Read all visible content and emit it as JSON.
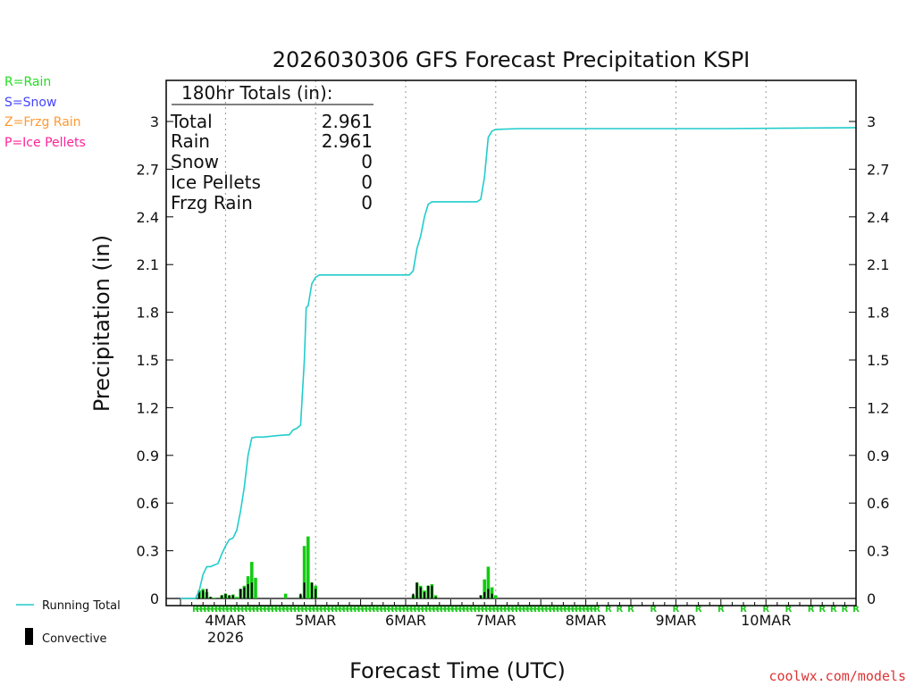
{
  "chart_data": {
    "type": "bar",
    "title": "2026030306 GFS Forecast Precipitation KSPI",
    "xlabel": "Forecast Time (UTC)",
    "ylabel": "Precipitation (in)",
    "ylim": [
      0,
      3.3
    ],
    "yticks": [
      "0",
      "0.3",
      "0.6",
      "0.9",
      "1.2",
      "1.5",
      "1.8",
      "2.1",
      "2.4",
      "2.7",
      "3"
    ],
    "x_unit": "forecast hour",
    "xlim": [
      0,
      180
    ],
    "x_ticks": [
      {
        "hour": 12,
        "label": "4MAR",
        "sublabel": "2026"
      },
      {
        "hour": 36,
        "label": "5MAR"
      },
      {
        "hour": 60,
        "label": "6MAR"
      },
      {
        "hour": 84,
        "label": "7MAR"
      },
      {
        "hour": 108,
        "label": "8MAR"
      },
      {
        "hour": 132,
        "label": "9MAR"
      },
      {
        "hour": 156,
        "label": "10MAR"
      }
    ],
    "type_legend": [
      {
        "text": "R=Rain",
        "color": "#22dd22"
      },
      {
        "text": "S=Snow",
        "color": "#4444ff"
      },
      {
        "text": "Z=Frzg Rain",
        "color": "#ff9933"
      },
      {
        "text": "P=Ice Pellets",
        "color": "#ff2299"
      }
    ],
    "series_legend": [
      {
        "name": "Running Total",
        "color": "#22cccc"
      },
      {
        "name": "Convective",
        "color": "#000000"
      }
    ],
    "totals": {
      "header": "180hr Totals (in):",
      "rows": [
        {
          "label": "Total",
          "value": "2.961"
        },
        {
          "label": "Rain",
          "value": "2.961"
        },
        {
          "label": "Snow",
          "value": "0"
        },
        {
          "label": "Ice Pellets",
          "value": "0"
        },
        {
          "label": "Frzg Rain",
          "value": "0"
        }
      ]
    },
    "precip_type_marker": "R",
    "series": [
      {
        "name": "Running Total",
        "color": "#22cccc",
        "type": "line",
        "points": [
          [
            0,
            0
          ],
          [
            4,
            0
          ],
          [
            5,
            0.05
          ],
          [
            6,
            0.15
          ],
          [
            7,
            0.2
          ],
          [
            8,
            0.2
          ],
          [
            9,
            0.21
          ],
          [
            10,
            0.22
          ],
          [
            11,
            0.28
          ],
          [
            12,
            0.33
          ],
          [
            13,
            0.37
          ],
          [
            14,
            0.38
          ],
          [
            15,
            0.43
          ],
          [
            16,
            0.55
          ],
          [
            17,
            0.7
          ],
          [
            18,
            0.9
          ],
          [
            19,
            1.01
          ],
          [
            20,
            1.015
          ],
          [
            22,
            1.015
          ],
          [
            24,
            1.02
          ],
          [
            26,
            1.025
          ],
          [
            29,
            1.03
          ],
          [
            30,
            1.06
          ],
          [
            31,
            1.07
          ],
          [
            32,
            1.09
          ],
          [
            33,
            1.5
          ],
          [
            33.5,
            1.83
          ],
          [
            34,
            1.84
          ],
          [
            35,
            1.98
          ],
          [
            36,
            2.02
          ],
          [
            37,
            2.035
          ],
          [
            48,
            2.035
          ],
          [
            60,
            2.035
          ],
          [
            61,
            2.035
          ],
          [
            62,
            2.06
          ],
          [
            63,
            2.2
          ],
          [
            64,
            2.28
          ],
          [
            65,
            2.4
          ],
          [
            66,
            2.48
          ],
          [
            67,
            2.495
          ],
          [
            72,
            2.495
          ],
          [
            79,
            2.495
          ],
          [
            80,
            2.51
          ],
          [
            81,
            2.65
          ],
          [
            82,
            2.9
          ],
          [
            83,
            2.94
          ],
          [
            84,
            2.95
          ],
          [
            90,
            2.955
          ],
          [
            108,
            2.955
          ],
          [
            144,
            2.955
          ],
          [
            180,
            2.961
          ]
        ]
      },
      {
        "name": "Precipitation (Rain)",
        "color": "#11cc11",
        "type": "bar",
        "points": [
          [
            5,
            0.05
          ],
          [
            6,
            0.06
          ],
          [
            7,
            0.04
          ],
          [
            8,
            0.01
          ],
          [
            9,
            0.005
          ],
          [
            11,
            0.02
          ],
          [
            12,
            0.03
          ],
          [
            13,
            0.02
          ],
          [
            14,
            0.025
          ],
          [
            15,
            0.01
          ],
          [
            16,
            0.06
          ],
          [
            17,
            0.08
          ],
          [
            18,
            0.14
          ],
          [
            19,
            0.23
          ],
          [
            20,
            0.13
          ],
          [
            28,
            0.03
          ],
          [
            32,
            0.02
          ],
          [
            33,
            0.33
          ],
          [
            34,
            0.39
          ],
          [
            35,
            0.1
          ],
          [
            36,
            0.08
          ],
          [
            62,
            0.02
          ],
          [
            63,
            0.1
          ],
          [
            64,
            0.08
          ],
          [
            65,
            0.05
          ],
          [
            66,
            0.08
          ],
          [
            67,
            0.09
          ],
          [
            68,
            0.02
          ],
          [
            80,
            0.02
          ],
          [
            81,
            0.12
          ],
          [
            82,
            0.2
          ],
          [
            83,
            0.07
          ],
          [
            84,
            0.02
          ]
        ]
      },
      {
        "name": "Convective",
        "color": "#000000",
        "type": "bar",
        "points": [
          [
            5,
            0.04
          ],
          [
            6,
            0.05
          ],
          [
            7,
            0.06
          ],
          [
            8,
            0.01
          ],
          [
            11,
            0.02
          ],
          [
            12,
            0.03
          ],
          [
            13,
            0.02
          ],
          [
            14,
            0.02
          ],
          [
            16,
            0.06
          ],
          [
            17,
            0.07
          ],
          [
            18,
            0.09
          ],
          [
            19,
            0.1
          ],
          [
            32,
            0.03
          ],
          [
            33,
            0.1
          ],
          [
            35,
            0.1
          ],
          [
            36,
            0.06
          ],
          [
            62,
            0.03
          ],
          [
            63,
            0.1
          ],
          [
            64,
            0.07
          ],
          [
            65,
            0.04
          ],
          [
            66,
            0.08
          ],
          [
            67,
            0.08
          ],
          [
            68,
            0.01
          ],
          [
            80,
            0.02
          ],
          [
            81,
            0.04
          ],
          [
            82,
            0.06
          ],
          [
            83,
            0.03
          ]
        ]
      }
    ],
    "rain_marker_hours": [
      4,
      5,
      6,
      7,
      8,
      9,
      10,
      11,
      12,
      13,
      14,
      15,
      16,
      17,
      18,
      19,
      20,
      21,
      22,
      23,
      24,
      25,
      26,
      27,
      28,
      29,
      30,
      31,
      32,
      33,
      34,
      35,
      36,
      37,
      38,
      39,
      40,
      41,
      42,
      43,
      44,
      45,
      46,
      47,
      48,
      49,
      50,
      51,
      52,
      53,
      54,
      55,
      56,
      57,
      58,
      59,
      60,
      61,
      62,
      63,
      64,
      65,
      66,
      67,
      68,
      69,
      70,
      71,
      72,
      73,
      74,
      75,
      76,
      77,
      78,
      79,
      80,
      81,
      82,
      83,
      84,
      85,
      86,
      87,
      88,
      89,
      90,
      91,
      92,
      93,
      94,
      95,
      96,
      97,
      98,
      99,
      100,
      101,
      102,
      103,
      104,
      105,
      106,
      107,
      108,
      109,
      110,
      111,
      114,
      117,
      120,
      126,
      132,
      138,
      144,
      150,
      156,
      162,
      168,
      171,
      174,
      177,
      180
    ]
  },
  "footer": {
    "credit": "coolwx.com/models"
  }
}
